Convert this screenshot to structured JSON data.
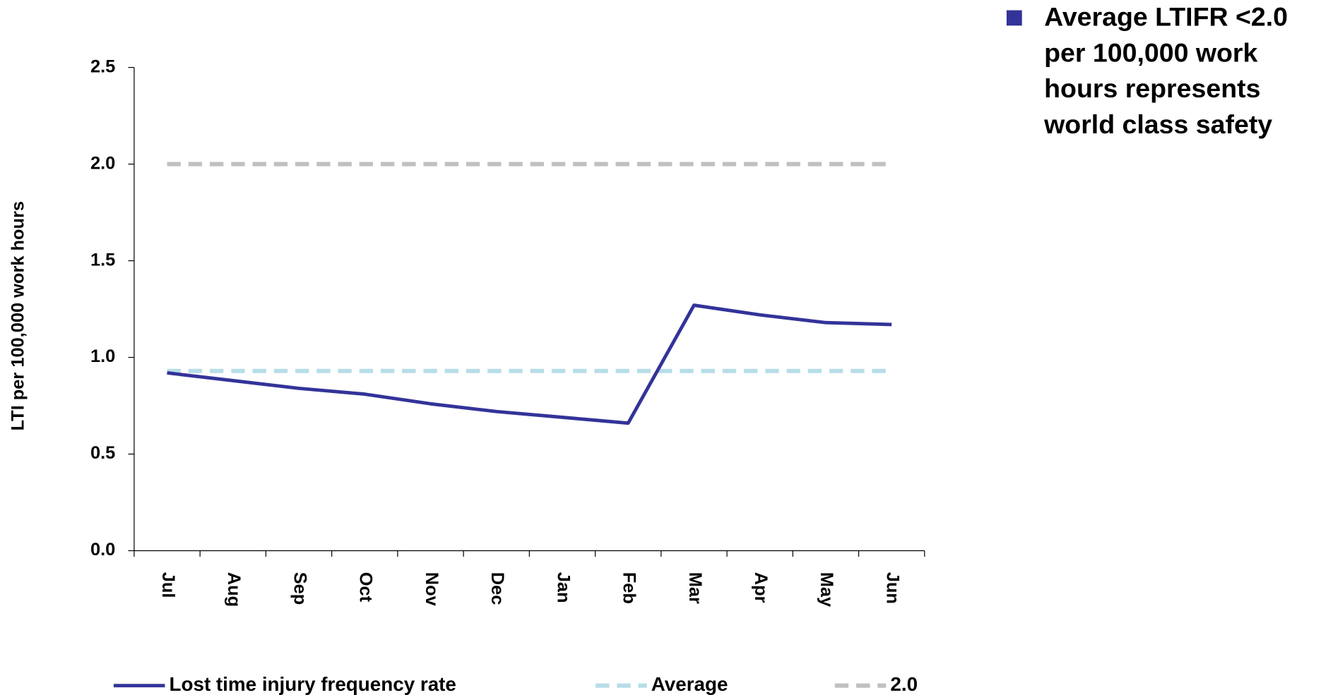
{
  "chart_data": {
    "type": "line",
    "y_axis_label": "LTI per 100,000 work hours",
    "categories": [
      "Jul",
      "Aug",
      "Sep",
      "Oct",
      "Nov",
      "Dec",
      "Jan",
      "Feb",
      "Mar",
      "Apr",
      "May",
      "Jun"
    ],
    "series": [
      {
        "name": "Lost time injury frequency rate",
        "color": "#333399",
        "dashed": false,
        "values": [
          0.92,
          0.88,
          0.84,
          0.81,
          0.76,
          0.72,
          0.69,
          0.66,
          1.27,
          1.22,
          1.18,
          1.17
        ]
      },
      {
        "name": "Average",
        "color": "#b7dde8",
        "dashed": true,
        "values": [
          0.93,
          0.93,
          0.93,
          0.93,
          0.93,
          0.93,
          0.93,
          0.93,
          0.93,
          0.93,
          0.93,
          0.93
        ]
      },
      {
        "name": "2.0",
        "color": "#c0c0c0",
        "dashed": true,
        "values": [
          2.0,
          2.0,
          2.0,
          2.0,
          2.0,
          2.0,
          2.0,
          2.0,
          2.0,
          2.0,
          2.0,
          2.0
        ]
      }
    ],
    "ylim": [
      0,
      2.5
    ],
    "yticks": [
      {
        "value": 0,
        "label": "0.0"
      },
      {
        "value": 0.5,
        "label": "0.5"
      },
      {
        "value": 1,
        "label": "1.0"
      },
      {
        "value": 1.5,
        "label": "1.5"
      },
      {
        "value": 2,
        "label": "2.0"
      },
      {
        "value": 2.5,
        "label": "2.5"
      }
    ],
    "grid": false,
    "legend": "bottom",
    "annotation": {
      "color": "#333399",
      "lines": [
        "Average LTIFR <2.0",
        "per 100,000 work",
        "hours represents",
        "world class safety"
      ]
    }
  }
}
